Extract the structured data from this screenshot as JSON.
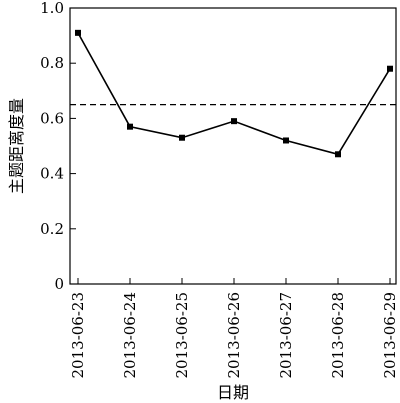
{
  "chart_data": {
    "type": "line",
    "x": [
      "2013-06-23",
      "2013-06-24",
      "2013-06-25",
      "2013-06-26",
      "2013-06-27",
      "2013-06-28",
      "2013-06-29"
    ],
    "series": [
      {
        "values": [
          0.91,
          0.57,
          0.53,
          0.59,
          0.52,
          0.47,
          0.78
        ]
      }
    ],
    "reference_line": {
      "y": 0.65,
      "style": "dashed"
    },
    "xlabel": "日期",
    "ylabel": "主题距离度量",
    "ylim": [
      0,
      1.0
    ],
    "yticks": [
      "0",
      "0.2",
      "0.4",
      "0.6",
      "0.8",
      "1.0"
    ],
    "grid": false,
    "line_color": "#000000",
    "marker": "square"
  }
}
